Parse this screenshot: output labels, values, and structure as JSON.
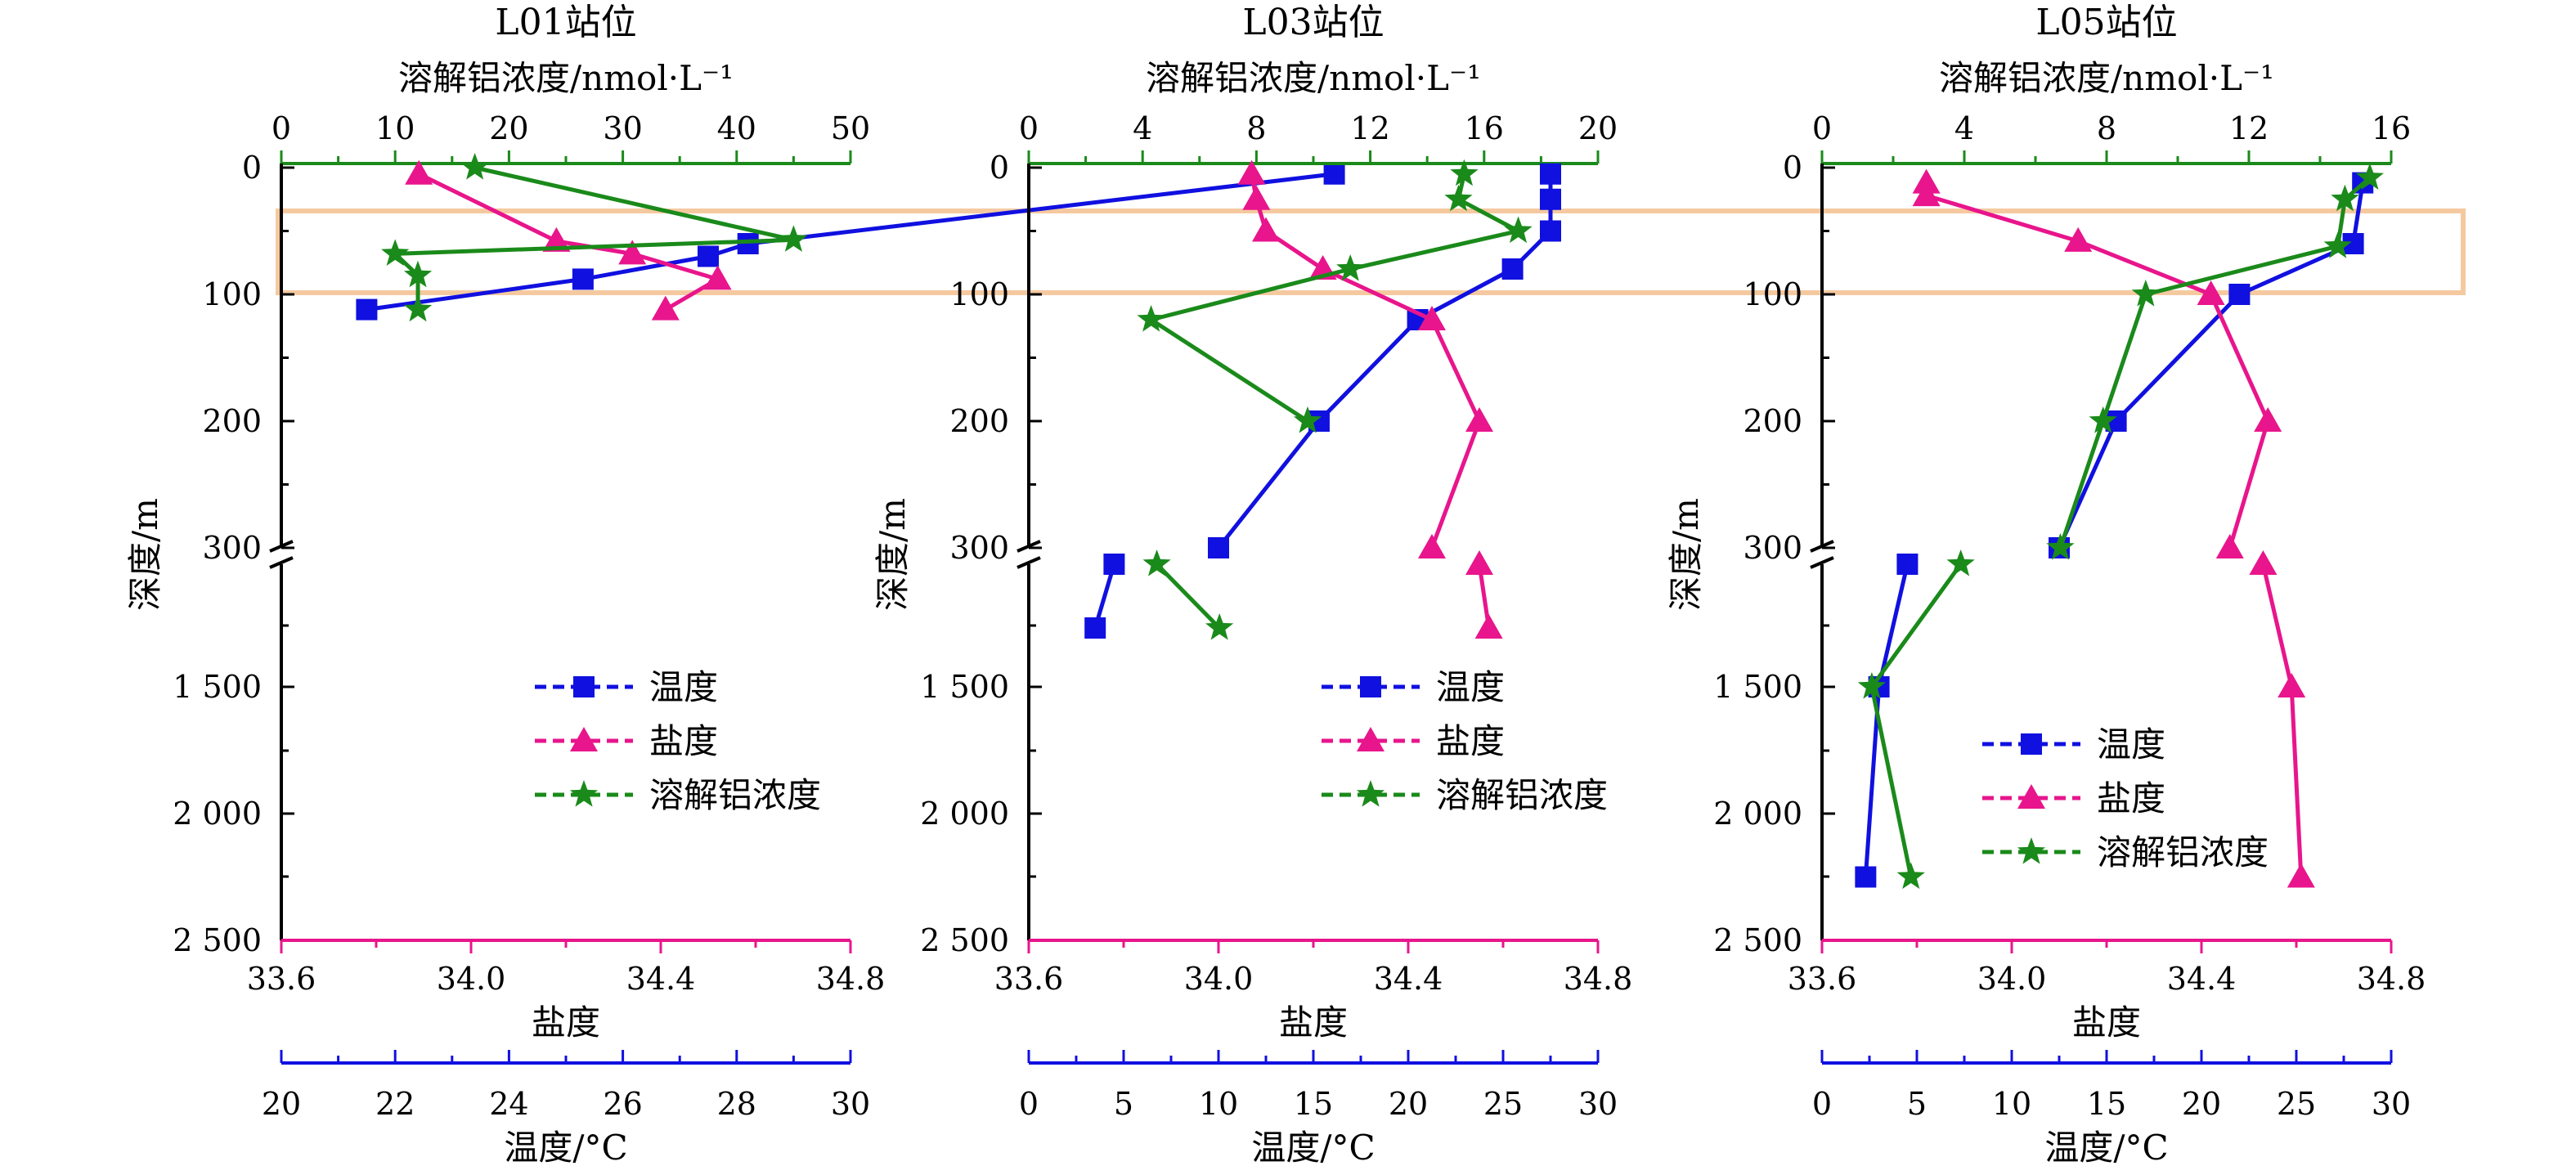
{
  "colors": {
    "temperature": "#1010e0",
    "salinity": "#e8158c",
    "aluminum": "#1a8a1a",
    "highlight": "#f5c9a0",
    "axis": "#000000"
  },
  "shared_labels": {
    "al_axis": "溶解铝浓度/nmol·L⁻¹",
    "depth_axis": "深度/m",
    "salinity_axis": "盐度",
    "temperature_axis": "温度/°C",
    "legend": [
      "温度",
      "盐度",
      "溶解铝浓度"
    ]
  },
  "chart_data": [
    {
      "type": "line",
      "title": "L01站位",
      "al_ticks": [
        "0",
        "10",
        "20",
        "30",
        "40",
        "50"
      ],
      "al_range": [
        0,
        50
      ],
      "salinity_ticks": [
        "33.6",
        "34.0",
        "34.4",
        "34.8"
      ],
      "salinity_range": [
        33.6,
        34.8
      ],
      "temperature_ticks": [
        "20",
        "22",
        "24",
        "26",
        "28",
        "30"
      ],
      "temperature_range": [
        20,
        30
      ],
      "depth_ticks_upper": [
        "0",
        "100",
        "200",
        "300"
      ],
      "depth_ticks_lower": [
        "1 500",
        "2 000",
        "2 500"
      ],
      "legend_position": "center",
      "series": [
        {
          "name": "温度",
          "points": [
            [
              38.5,
              5
            ],
            [
              28.2,
              60
            ],
            [
              27.5,
              70
            ],
            [
              25.3,
              88
            ],
            [
              21.5,
              112
            ]
          ]
        },
        {
          "name": "盐度",
          "points": [
            [
              33.89,
              5
            ],
            [
              34.18,
              58
            ],
            [
              34.34,
              68
            ],
            [
              34.52,
              88
            ],
            [
              34.41,
              112
            ]
          ]
        },
        {
          "name": "溶解铝浓度",
          "points": [
            [
              17,
              0
            ],
            [
              45,
              57
            ],
            [
              10,
              68
            ],
            [
              12,
              85
            ],
            [
              12,
              112
            ]
          ]
        }
      ]
    },
    {
      "type": "line",
      "title": "L03站位",
      "al_ticks": [
        "0",
        "4",
        "8",
        "12",
        "16",
        "20"
      ],
      "al_range": [
        0,
        20
      ],
      "salinity_ticks": [
        "33.6",
        "34.0",
        "34.4",
        "34.8"
      ],
      "salinity_range": [
        33.6,
        34.8
      ],
      "temperature_ticks": [
        "0",
        "5",
        "10",
        "15",
        "20",
        "25",
        "30"
      ],
      "temperature_range": [
        0,
        30
      ],
      "depth_ticks_upper": [
        "0",
        "100",
        "200",
        "300"
      ],
      "depth_ticks_lower": [
        "1 500",
        "2 000",
        "2 500"
      ],
      "legend_position": "center",
      "series": [
        {
          "name": "温度",
          "points": [
            [
              27.5,
              5
            ],
            [
              27.5,
              25
            ],
            [
              27.5,
              50
            ],
            [
              25.5,
              80
            ],
            [
              20.5,
              120
            ],
            [
              15.3,
              200
            ],
            [
              10,
              300
            ],
            [
              4.5,
              310
            ],
            [
              3.5,
              1050
            ]
          ]
        },
        {
          "name": "盐度",
          "points": [
            [
              34.07,
              5
            ],
            [
              34.08,
              25
            ],
            [
              34.1,
              50
            ],
            [
              34.22,
              80
            ],
            [
              34.45,
              120
            ],
            [
              34.55,
              200
            ],
            [
              34.45,
              300
            ],
            [
              34.55,
              310
            ],
            [
              34.57,
              1050
            ]
          ]
        },
        {
          "name": "溶解铝浓度",
          "points": [
            [
              15.3,
              5
            ],
            [
              15.1,
              25
            ],
            [
              17.2,
              50
            ],
            [
              11.3,
              80
            ],
            [
              4.3,
              120
            ],
            [
              9.8,
              200
            ],
            [
              4.5,
              310
            ],
            [
              6.7,
              1050
            ]
          ]
        }
      ]
    },
    {
      "type": "line",
      "title": "L05站位",
      "al_ticks": [
        "0",
        "4",
        "8",
        "12",
        "16"
      ],
      "al_range": [
        0,
        16
      ],
      "salinity_ticks": [
        "33.6",
        "34.0",
        "34.4",
        "34.8"
      ],
      "salinity_range": [
        33.6,
        34.8
      ],
      "temperature_ticks": [
        "0",
        "5",
        "10",
        "15",
        "20",
        "25",
        "30"
      ],
      "temperature_range": [
        0,
        30
      ],
      "depth_ticks_upper": [
        "0",
        "100",
        "200",
        "300"
      ],
      "depth_ticks_lower": [
        "1 500",
        "2 000",
        "2 500"
      ],
      "legend_position": "bottom-center",
      "series": [
        {
          "name": "温度",
          "points": [
            [
              28.5,
              12
            ],
            [
              28,
              60
            ],
            [
              22,
              100
            ],
            [
              15.5,
              200
            ],
            [
              12.5,
              300
            ],
            [
              4.5,
              310
            ],
            [
              3,
              1500
            ],
            [
              2.3,
              2250
            ]
          ]
        },
        {
          "name": "盐度",
          "points": [
            [
              33.82,
              12
            ],
            [
              33.82,
              22
            ],
            [
              34.14,
              58
            ],
            [
              34.42,
              100
            ],
            [
              34.54,
              200
            ],
            [
              34.46,
              300
            ],
            [
              34.53,
              310
            ],
            [
              34.59,
              1500
            ],
            [
              34.61,
              2250
            ]
          ]
        },
        {
          "name": "溶解铝浓度",
          "points": [
            [
              15.4,
              8
            ],
            [
              14.7,
              25
            ],
            [
              14.5,
              62
            ],
            [
              9.1,
              100
            ],
            [
              7.9,
              200
            ],
            [
              6.7,
              300
            ],
            [
              3.9,
              310
            ],
            [
              1.4,
              1500
            ],
            [
              2.5,
              2250
            ]
          ]
        }
      ]
    }
  ]
}
